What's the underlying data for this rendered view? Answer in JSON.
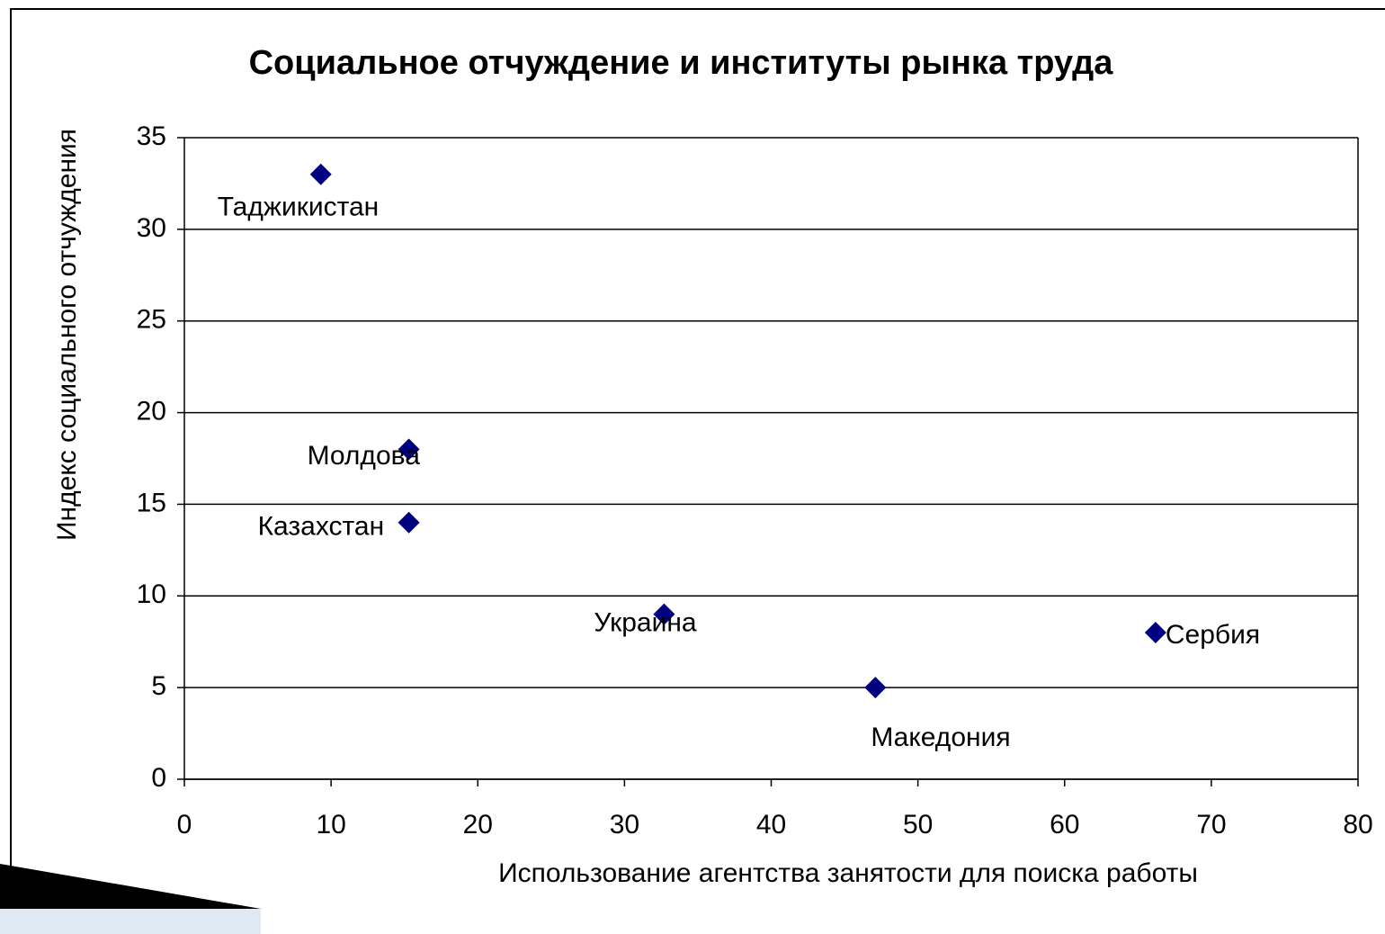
{
  "chart_data": {
    "type": "scatter",
    "title": "Социальное отчуждение и институты рынка труда",
    "xlabel": "Использование агентства занятости для поиска работы",
    "ylabel": "Индекс социального отчуждения",
    "labels": [
      "Таджикистан",
      "Молдова",
      "Казахстан",
      "Украина",
      "Македония",
      "Сербия"
    ],
    "x": [
      9.3,
      15.3,
      15.3,
      32.7,
      47.1,
      66.2
    ],
    "values": [
      33,
      18,
      14,
      9,
      5,
      8
    ],
    "color": "#000080",
    "xlim": [
      0,
      80
    ],
    "xticks": [
      0,
      10,
      20,
      30,
      40,
      50,
      60,
      70,
      80
    ],
    "ylim": [
      0,
      35
    ],
    "yticks": [
      0,
      5,
      10,
      15,
      20,
      25,
      30,
      35
    ],
    "grid": true
  }
}
